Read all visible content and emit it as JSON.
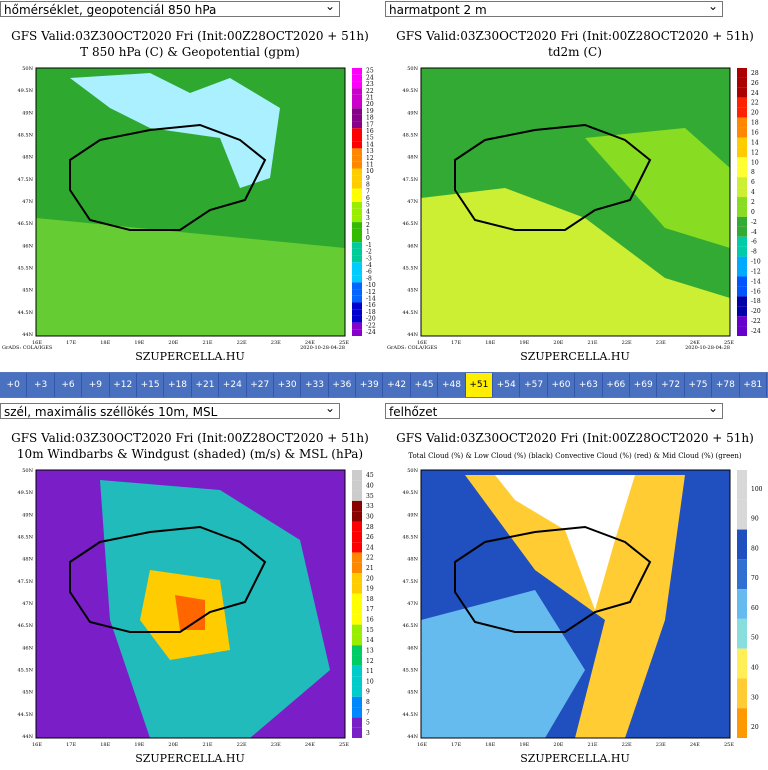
{
  "panels": [
    {
      "select": "hőmérséklet, geopotenciál 850 hPa",
      "title": "GFS Valid:03Z30OCT2020 Fri (Init:00Z28OCT2020 + 51h)",
      "subtitle": "T 850 hPa (C) & Geopotential (gpm)",
      "colorbar": [
        "25",
        "24",
        "23",
        "22",
        "21",
        "20",
        "19",
        "18",
        "17",
        "16",
        "15",
        "14",
        "13",
        "12",
        "11",
        "10",
        "9",
        "8",
        "7",
        "6",
        "5",
        "4",
        "3",
        "2",
        "1",
        "0",
        "-1",
        "-2",
        "-3",
        "-4",
        "-6",
        "-8",
        "-10",
        "-12",
        "-14",
        "-16",
        "-18",
        "-20",
        "-22",
        "-24"
      ],
      "footer": "SZUPERCELLA.HU",
      "credit": "GrADS: COLA/IGES",
      "date": "2020-10-28-04:28"
    },
    {
      "select": "harmatpont 2 m",
      "title": "GFS Valid:03Z30OCT2020 Fri (Init:00Z28OCT2020 + 51h)",
      "subtitle": "td2m (C)",
      "colorbar": [
        "28",
        "26",
        "24",
        "22",
        "20",
        "18",
        "16",
        "14",
        "12",
        "10",
        "8",
        "6",
        "4",
        "2",
        "0",
        "-2",
        "-4",
        "-6",
        "-8",
        "-10",
        "-12",
        "-14",
        "-16",
        "-18",
        "-20",
        "-22",
        "-24"
      ],
      "footer": "SZUPERCELLA.HU",
      "credit": "GrADS: COLA/IGES",
      "date": "2020-10-28-04:28"
    },
    {
      "select": "szél, maximális széllökés 10m, MSL",
      "title": "GFS Valid:03Z30OCT2020 Fri (Init:00Z28OCT2020 + 51h)",
      "subtitle": "10m Windbarbs & Windgust (shaded) (m/s) & MSL (hPa)",
      "colorbar": [
        "45",
        "40",
        "35",
        "33",
        "30",
        "28",
        "26",
        "24",
        "22",
        "21",
        "20",
        "19",
        "18",
        "17",
        "16",
        "15",
        "14",
        "13",
        "12",
        "11",
        "10",
        "9",
        "8",
        "7",
        "5",
        "3"
      ],
      "footer": "SZUPERCELLA.HU"
    },
    {
      "select": "felhőzet",
      "title": "GFS Valid:03Z30OCT2020 Fri (Init:00Z28OCT2020 + 51h)",
      "subtitle": "Total Cloud (%) & Low Cloud (%) (black) Convective Cloud (%) (red) & Mid Cloud (%) (green)",
      "colorbar": [
        "100",
        "90",
        "80",
        "70",
        "60",
        "50",
        "40",
        "30",
        "20"
      ],
      "footer": "SZUPERCELLA.HU"
    }
  ],
  "lat_labels": [
    "50N",
    "49.5N",
    "49N",
    "48.5N",
    "48N",
    "47.5N",
    "47N",
    "46.5N",
    "46N",
    "45.5N",
    "45N",
    "44.5N",
    "44N"
  ],
  "lon_labels": [
    "16E",
    "17E",
    "18E",
    "19E",
    "20E",
    "21E",
    "22E",
    "23E",
    "24E",
    "25E"
  ],
  "timesteps": [
    "+0",
    "+3",
    "+6",
    "+9",
    "+12",
    "+15",
    "+18",
    "+21",
    "+24",
    "+27",
    "+30",
    "+33",
    "+36",
    "+39",
    "+42",
    "+45",
    "+48",
    "+51",
    "+54",
    "+57",
    "+60",
    "+63",
    "+66",
    "+69",
    "+72",
    "+75",
    "+78",
    "+81"
  ],
  "selected_timestep": 17
}
